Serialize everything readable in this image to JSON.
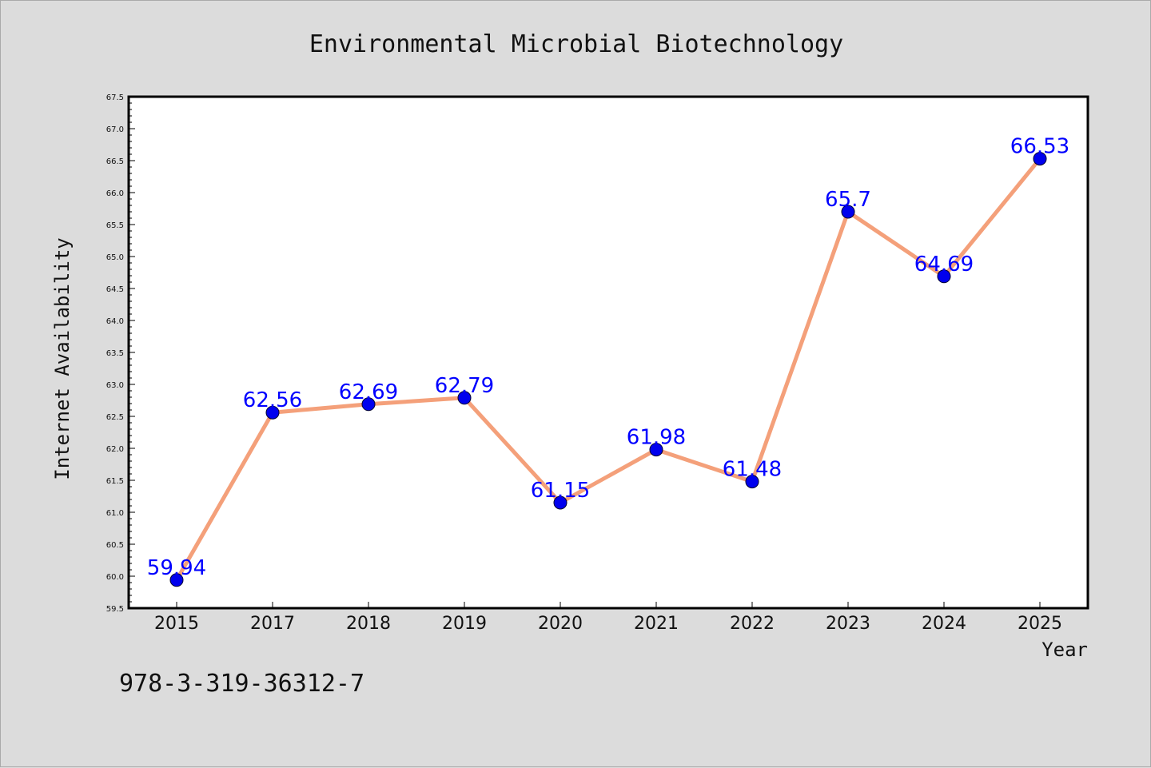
{
  "chart_data": {
    "type": "line",
    "title": "Environmental Microbial Biotechnology",
    "xlabel": "Year",
    "ylabel": "Internet Availability",
    "categories": [
      "2015",
      "2017",
      "2018",
      "2019",
      "2020",
      "2021",
      "2022",
      "2023",
      "2024",
      "2025"
    ],
    "series": [
      {
        "values": [
          59.94,
          62.56,
          62.69,
          62.79,
          61.15,
          61.98,
          61.48,
          65.7,
          64.69,
          66.53
        ],
        "labels": [
          "59.94",
          "62.56",
          "62.69",
          "62.79",
          "61.15",
          "61.98",
          "61.48",
          "65.7",
          "64.69",
          "66.53"
        ],
        "line_color": "#f4a07a",
        "marker_color": "#0000ee"
      }
    ],
    "ylim": [
      59.5,
      67.5
    ],
    "yticks": [
      "59.5",
      "60.0",
      "60.5",
      "61.0",
      "61.5",
      "62.0",
      "62.5",
      "63.0",
      "63.5",
      "64.0",
      "64.5",
      "65.0",
      "65.5",
      "66.0",
      "66.5",
      "67.0",
      "67.5"
    ],
    "grid": false,
    "legend": "none"
  },
  "footer": {
    "isbn": "978-3-319-36312-7"
  },
  "colors": {
    "background": "#dcdcdc",
    "plot_area": "#ffffff",
    "label_color": "#0000ff"
  }
}
